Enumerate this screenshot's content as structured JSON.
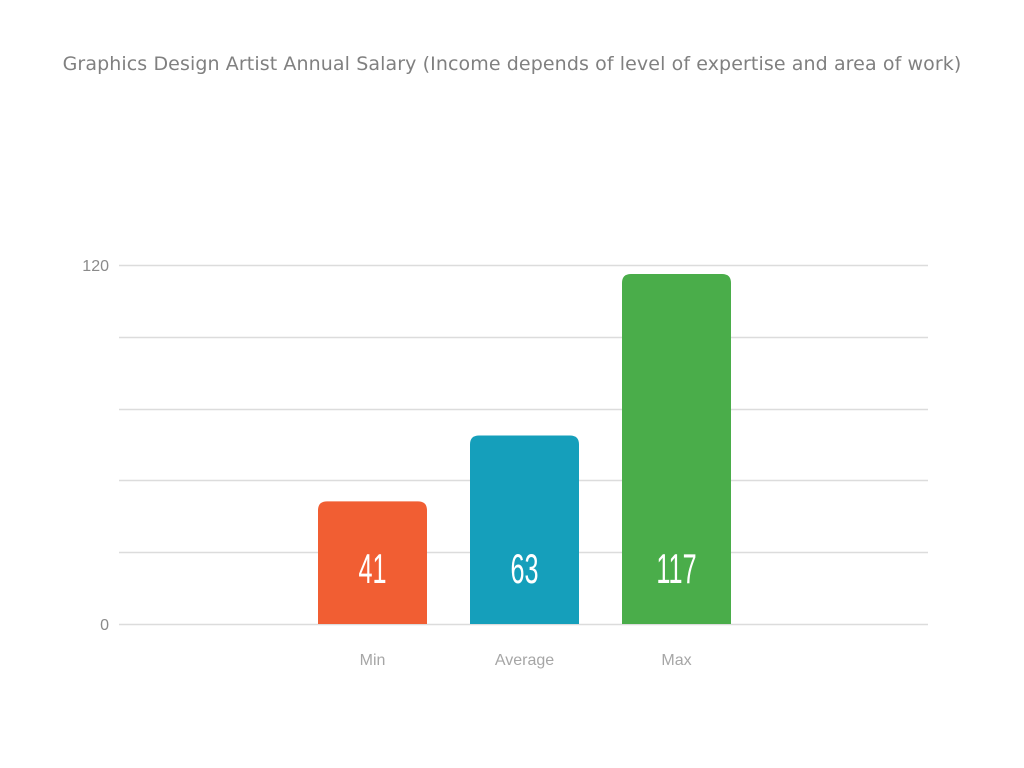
{
  "chart_data": {
    "type": "bar",
    "title": "Graphics Design Artist Annual Salary (Income depends of level of expertise and area of work)",
    "categories": [
      "Min",
      "Average",
      "Max"
    ],
    "values": [
      41,
      63,
      117
    ],
    "colors": [
      "#f15e33",
      "#159fbb",
      "#4aad4a"
    ],
    "xlabel": "",
    "ylabel": "",
    "ylim": [
      0,
      120
    ],
    "yticks": [
      0,
      120
    ],
    "gridlines": [
      0,
      24,
      48,
      72,
      96,
      120
    ],
    "grid": true,
    "gridColor": "#dcdcdc",
    "legend": "none"
  }
}
